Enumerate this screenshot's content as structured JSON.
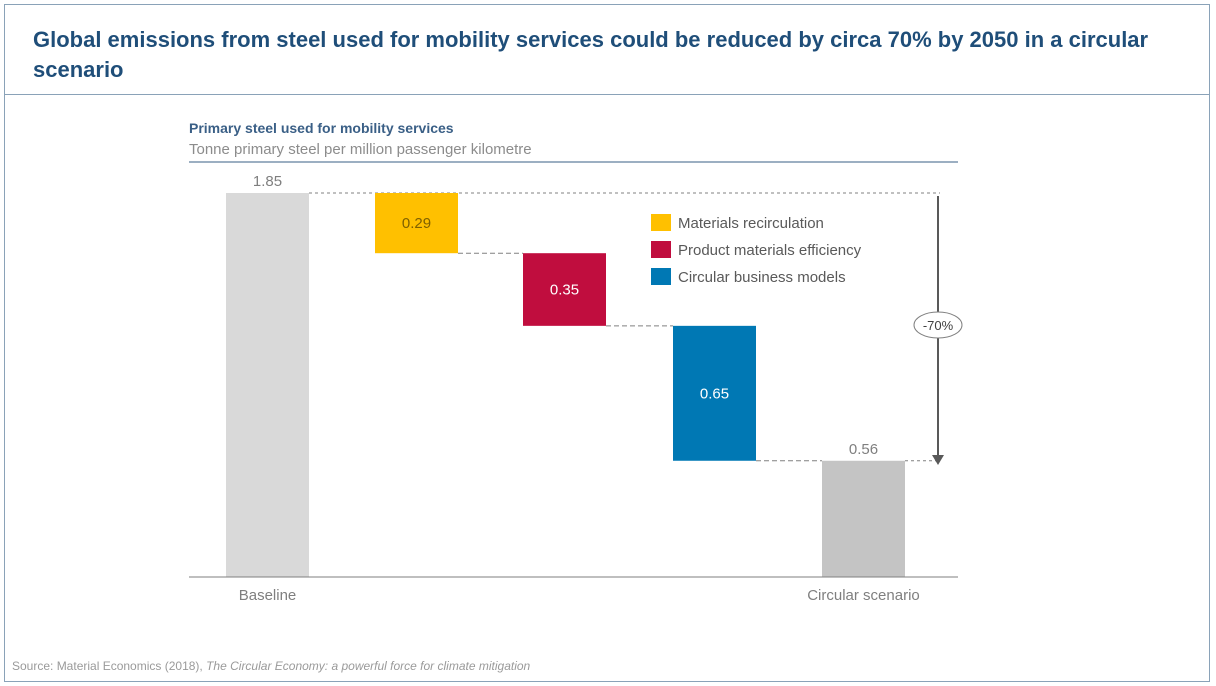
{
  "title": "Global emissions from steel used for mobility services could be reduced by circa 70% by 2050 in a circular scenario",
  "chart_data": {
    "type": "bar",
    "subtype": "waterfall",
    "title": "Primary steel used for mobility services",
    "ylabel": "Tonne primary steel per million passenger kilometre",
    "ylim": [
      0,
      1.85
    ],
    "bars": [
      {
        "label": "Baseline",
        "kind": "total",
        "value": 1.85,
        "value_label": "1.85",
        "color": "#d9d9d9"
      },
      {
        "label": "",
        "kind": "decrease",
        "value": 0.29,
        "value_label": "0.29",
        "series": "Materials recirculation",
        "color": "#ffc000"
      },
      {
        "label": "",
        "kind": "decrease",
        "value": 0.35,
        "value_label": "0.35",
        "series": "Product materials efficiency",
        "color": "#c00d3e"
      },
      {
        "label": "",
        "kind": "decrease",
        "value": 0.65,
        "value_label": "0.65",
        "series": "Circular business models",
        "color": "#0078b4"
      },
      {
        "label": "Circular scenario",
        "kind": "total",
        "value": 0.56,
        "value_label": "0.56",
        "color": "#c4c4c4"
      }
    ],
    "legend": [
      {
        "name": "Materials recirculation",
        "color": "#ffc000"
      },
      {
        "name": "Product materials efficiency",
        "color": "#c00d3e"
      },
      {
        "name": "Circular business models",
        "color": "#0078b4"
      }
    ],
    "legend_position": "top-right",
    "annotation": "-70%",
    "grid": false
  },
  "source": {
    "prefix": "Source: Material Economics (2018), ",
    "italic": "The Circular Economy: a powerful force for climate mitigation"
  }
}
